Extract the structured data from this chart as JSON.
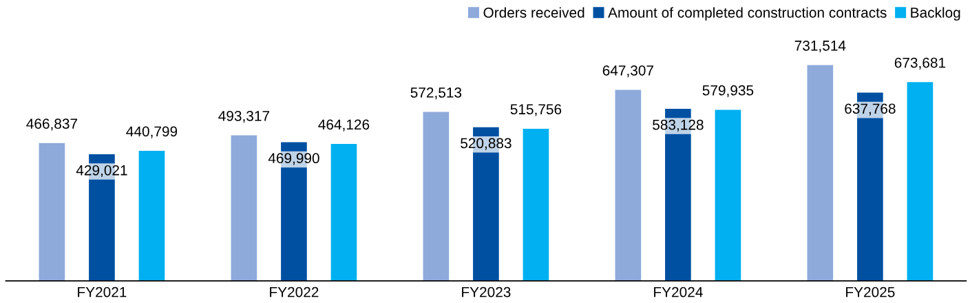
{
  "chart_data": {
    "type": "bar",
    "categories": [
      "FY2021",
      "FY2022",
      "FY2023",
      "FY2024",
      "FY2025"
    ],
    "series": [
      {
        "name": "Orders received",
        "color": "#8eaadb",
        "values": [
          466837,
          493317,
          572513,
          647307,
          731514
        ],
        "value_labels": [
          "466,837",
          "493,317",
          "572,513",
          "647,307",
          "731,514"
        ]
      },
      {
        "name": "Amount of completed construction contracts",
        "color": "#0050a2",
        "values": [
          429021,
          469990,
          520883,
          583128,
          637768
        ],
        "value_labels": [
          "429,021",
          "469,990",
          "520,883",
          "583,128",
          "637,768"
        ]
      },
      {
        "name": "Backlog",
        "color": "#00b0f0",
        "values": [
          440799,
          464126,
          515756,
          579935,
          673681
        ],
        "value_labels": [
          "440,799",
          "464,126",
          "515,756",
          "579,935",
          "673,681"
        ]
      }
    ],
    "grid": false,
    "legend": "top right"
  }
}
